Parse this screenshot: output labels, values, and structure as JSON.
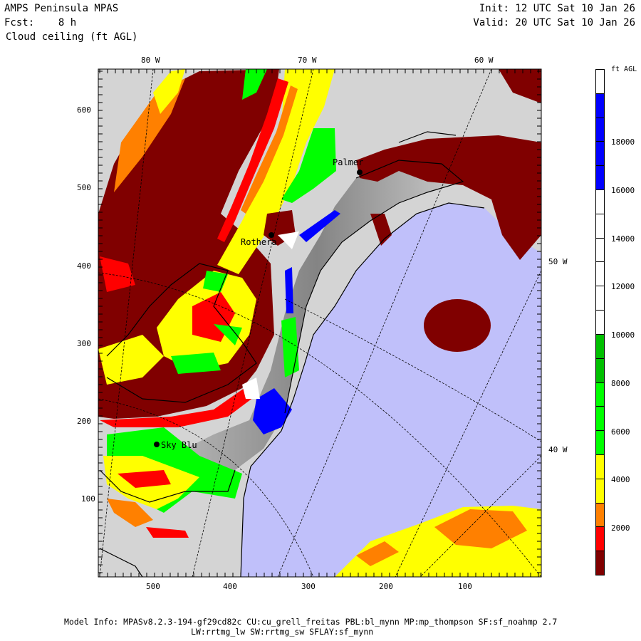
{
  "header": {
    "model": "AMPS Peninsula MPAS",
    "forecast": "Fcst:    8 h",
    "field": "Cloud ceiling (ft AGL)",
    "init": "Init: 12 UTC Sat 10 Jan 26",
    "valid": "Valid: 20 UTC Sat 10 Jan 26"
  },
  "axes": {
    "top": [
      "80 W",
      "70 W",
      "60 W"
    ],
    "right": [
      "50 W",
      "40 W"
    ],
    "left": [
      "600",
      "500",
      "400",
      "300",
      "200",
      "100"
    ],
    "bottom": [
      "500",
      "400",
      "300",
      "200",
      "100"
    ]
  },
  "stations": [
    "Palmer",
    "Rothera",
    "Sky Blu"
  ],
  "colorbar": {
    "units": "ft AGL",
    "labels": [
      "18000",
      "16000",
      "14000",
      "12000",
      "10000",
      "8000",
      "6000",
      "4000",
      "2000"
    ],
    "colors": [
      "#ffffff",
      "#0000ff",
      "#0000ff",
      "#0000ff",
      "#0000ff",
      "#ffffff",
      "#ffffff",
      "#ffffff",
      "#ffffff",
      "#ffffff",
      "#ffffff",
      "#00bf00",
      "#00bf00",
      "#00ff00",
      "#00ff00",
      "#00ff00",
      "#ffff00",
      "#ffff00",
      "#ff8000",
      "#ff0000",
      "#800000"
    ]
  },
  "footer": {
    "line1": "Model Info: MPASv8.2.3-194-gf29cd82c CU:cu_grell_freitas PBL:bl_mynn MP:mp_thompson SF:sf_noahmp 2.7",
    "line2": "LW:rrtmg_lw SW:rrtmg_sw SFLAY:sf_mynn"
  }
}
